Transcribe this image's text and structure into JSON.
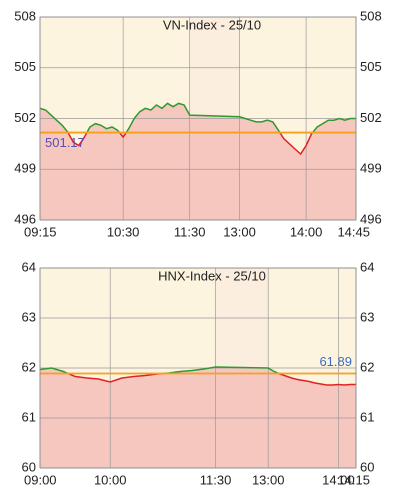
{
  "chart_data": [
    {
      "type": "line",
      "title": "VN-Index - 25/10",
      "x": [
        555,
        560,
        565,
        570,
        575,
        580,
        585,
        590,
        595,
        600,
        605,
        610,
        615,
        620,
        625,
        630,
        635,
        640,
        645,
        650,
        655,
        660,
        665,
        670,
        675,
        680,
        685,
        690,
        780,
        785,
        790,
        795,
        800,
        805,
        810,
        815,
        820,
        825,
        830,
        835,
        840,
        845,
        850,
        855,
        860,
        865,
        870,
        875,
        880,
        885
      ],
      "values": [
        502.6,
        502.5,
        502.2,
        501.9,
        501.6,
        501.2,
        500.6,
        500.4,
        500.9,
        501.5,
        501.7,
        501.6,
        501.4,
        501.5,
        501.3,
        500.9,
        501.4,
        502.0,
        502.4,
        502.6,
        502.5,
        502.8,
        502.6,
        502.9,
        502.7,
        502.9,
        502.8,
        502.2,
        502.1,
        502.0,
        501.9,
        501.8,
        501.8,
        501.9,
        501.8,
        501.3,
        500.8,
        500.5,
        500.2,
        499.9,
        500.4,
        501.1,
        501.5,
        501.7,
        501.9,
        501.9,
        502.0,
        501.9,
        502.0,
        502.0
      ],
      "reference": 501.17,
      "reference_label_position": "left",
      "reference_label_color": "#5a4fb0",
      "xlim": [
        555,
        885
      ],
      "break": [
        690,
        780
      ],
      "xticks": [
        {
          "value": 555,
          "label": "09:15"
        },
        {
          "value": 630,
          "label": "10:30"
        },
        {
          "value": 690,
          "label": "11:30"
        },
        {
          "value": 780,
          "label": "13:00"
        },
        {
          "value": 840,
          "label": "14:00"
        },
        {
          "value": 885,
          "label": "14:45"
        }
      ],
      "ylim": [
        496,
        508
      ],
      "yticks": [
        496,
        499,
        502,
        505,
        508
      ],
      "colors": {
        "up": "#2f9a2f",
        "down": "#e02222",
        "area": "#f5c7bf",
        "reference": "#f5a11c",
        "background": "#fdf4e0",
        "break": "#fbeedf",
        "grid": "#9a9a9a"
      }
    },
    {
      "type": "line",
      "title": "HNX-Index - 25/10",
      "x": [
        540,
        550,
        560,
        570,
        580,
        590,
        600,
        610,
        620,
        630,
        640,
        650,
        660,
        670,
        680,
        690,
        780,
        785,
        790,
        795,
        800,
        805,
        810,
        815,
        820,
        825,
        830,
        835,
        840,
        845,
        850,
        855
      ],
      "values": [
        61.97,
        62.0,
        61.93,
        61.83,
        61.8,
        61.78,
        61.72,
        61.8,
        61.83,
        61.85,
        61.88,
        61.9,
        61.93,
        61.95,
        61.98,
        62.02,
        62.0,
        61.93,
        61.88,
        61.84,
        61.8,
        61.77,
        61.75,
        61.73,
        61.7,
        61.68,
        61.66,
        61.66,
        61.67,
        61.66,
        61.67,
        61.67
      ],
      "reference": 61.89,
      "reference_label_position": "right",
      "reference_label_color": "#3a6fc0",
      "xlim": [
        540,
        855
      ],
      "break": [
        690,
        780
      ],
      "xticks": [
        {
          "value": 540,
          "label": "09:00"
        },
        {
          "value": 600,
          "label": "10:00"
        },
        {
          "value": 690,
          "label": "11:30"
        },
        {
          "value": 780,
          "label": "13:00"
        },
        {
          "value": 840,
          "label": "14:00"
        },
        {
          "value": 855,
          "label": "14:15"
        }
      ],
      "ylim": [
        60,
        64
      ],
      "yticks": [
        60,
        61,
        62,
        63,
        64
      ],
      "colors": {
        "up": "#2f9a2f",
        "down": "#e02222",
        "area": "#f5c7bf",
        "reference": "#f5a11c",
        "background": "#fdf4e0",
        "break": "#fbeedf",
        "grid": "#9a9a9a"
      }
    }
  ]
}
